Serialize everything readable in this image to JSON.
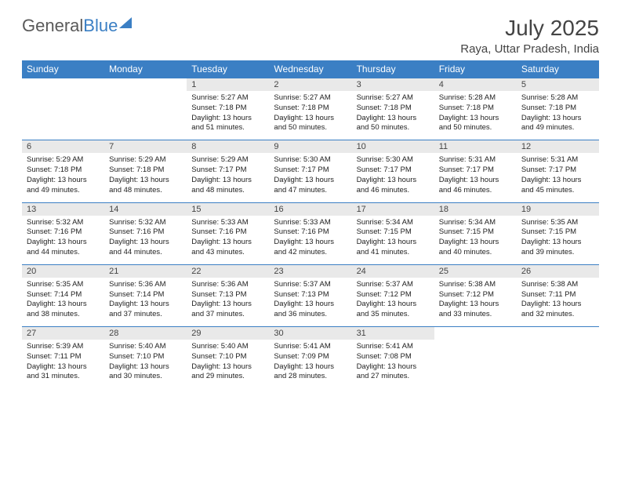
{
  "logo": {
    "part1": "General",
    "part2": "Blue"
  },
  "title": "July 2025",
  "location": "Raya, Uttar Pradesh, India",
  "header_bg": "#3b7fc4",
  "daynum_bg": "#e9e9e9",
  "weekdays": [
    "Sunday",
    "Monday",
    "Tuesday",
    "Wednesday",
    "Thursday",
    "Friday",
    "Saturday"
  ],
  "weeks": [
    [
      null,
      null,
      {
        "n": "1",
        "sr": "5:27 AM",
        "ss": "7:18 PM",
        "dl": "13 hours and 51 minutes."
      },
      {
        "n": "2",
        "sr": "5:27 AM",
        "ss": "7:18 PM",
        "dl": "13 hours and 50 minutes."
      },
      {
        "n": "3",
        "sr": "5:27 AM",
        "ss": "7:18 PM",
        "dl": "13 hours and 50 minutes."
      },
      {
        "n": "4",
        "sr": "5:28 AM",
        "ss": "7:18 PM",
        "dl": "13 hours and 50 minutes."
      },
      {
        "n": "5",
        "sr": "5:28 AM",
        "ss": "7:18 PM",
        "dl": "13 hours and 49 minutes."
      }
    ],
    [
      {
        "n": "6",
        "sr": "5:29 AM",
        "ss": "7:18 PM",
        "dl": "13 hours and 49 minutes."
      },
      {
        "n": "7",
        "sr": "5:29 AM",
        "ss": "7:18 PM",
        "dl": "13 hours and 48 minutes."
      },
      {
        "n": "8",
        "sr": "5:29 AM",
        "ss": "7:17 PM",
        "dl": "13 hours and 48 minutes."
      },
      {
        "n": "9",
        "sr": "5:30 AM",
        "ss": "7:17 PM",
        "dl": "13 hours and 47 minutes."
      },
      {
        "n": "10",
        "sr": "5:30 AM",
        "ss": "7:17 PM",
        "dl": "13 hours and 46 minutes."
      },
      {
        "n": "11",
        "sr": "5:31 AM",
        "ss": "7:17 PM",
        "dl": "13 hours and 46 minutes."
      },
      {
        "n": "12",
        "sr": "5:31 AM",
        "ss": "7:17 PM",
        "dl": "13 hours and 45 minutes."
      }
    ],
    [
      {
        "n": "13",
        "sr": "5:32 AM",
        "ss": "7:16 PM",
        "dl": "13 hours and 44 minutes."
      },
      {
        "n": "14",
        "sr": "5:32 AM",
        "ss": "7:16 PM",
        "dl": "13 hours and 44 minutes."
      },
      {
        "n": "15",
        "sr": "5:33 AM",
        "ss": "7:16 PM",
        "dl": "13 hours and 43 minutes."
      },
      {
        "n": "16",
        "sr": "5:33 AM",
        "ss": "7:16 PM",
        "dl": "13 hours and 42 minutes."
      },
      {
        "n": "17",
        "sr": "5:34 AM",
        "ss": "7:15 PM",
        "dl": "13 hours and 41 minutes."
      },
      {
        "n": "18",
        "sr": "5:34 AM",
        "ss": "7:15 PM",
        "dl": "13 hours and 40 minutes."
      },
      {
        "n": "19",
        "sr": "5:35 AM",
        "ss": "7:15 PM",
        "dl": "13 hours and 39 minutes."
      }
    ],
    [
      {
        "n": "20",
        "sr": "5:35 AM",
        "ss": "7:14 PM",
        "dl": "13 hours and 38 minutes."
      },
      {
        "n": "21",
        "sr": "5:36 AM",
        "ss": "7:14 PM",
        "dl": "13 hours and 37 minutes."
      },
      {
        "n": "22",
        "sr": "5:36 AM",
        "ss": "7:13 PM",
        "dl": "13 hours and 37 minutes."
      },
      {
        "n": "23",
        "sr": "5:37 AM",
        "ss": "7:13 PM",
        "dl": "13 hours and 36 minutes."
      },
      {
        "n": "24",
        "sr": "5:37 AM",
        "ss": "7:12 PM",
        "dl": "13 hours and 35 minutes."
      },
      {
        "n": "25",
        "sr": "5:38 AM",
        "ss": "7:12 PM",
        "dl": "13 hours and 33 minutes."
      },
      {
        "n": "26",
        "sr": "5:38 AM",
        "ss": "7:11 PM",
        "dl": "13 hours and 32 minutes."
      }
    ],
    [
      {
        "n": "27",
        "sr": "5:39 AM",
        "ss": "7:11 PM",
        "dl": "13 hours and 31 minutes."
      },
      {
        "n": "28",
        "sr": "5:40 AM",
        "ss": "7:10 PM",
        "dl": "13 hours and 30 minutes."
      },
      {
        "n": "29",
        "sr": "5:40 AM",
        "ss": "7:10 PM",
        "dl": "13 hours and 29 minutes."
      },
      {
        "n": "30",
        "sr": "5:41 AM",
        "ss": "7:09 PM",
        "dl": "13 hours and 28 minutes."
      },
      {
        "n": "31",
        "sr": "5:41 AM",
        "ss": "7:08 PM",
        "dl": "13 hours and 27 minutes."
      },
      null,
      null
    ]
  ],
  "labels": {
    "sunrise": "Sunrise:",
    "sunset": "Sunset:",
    "daylight": "Daylight:"
  }
}
